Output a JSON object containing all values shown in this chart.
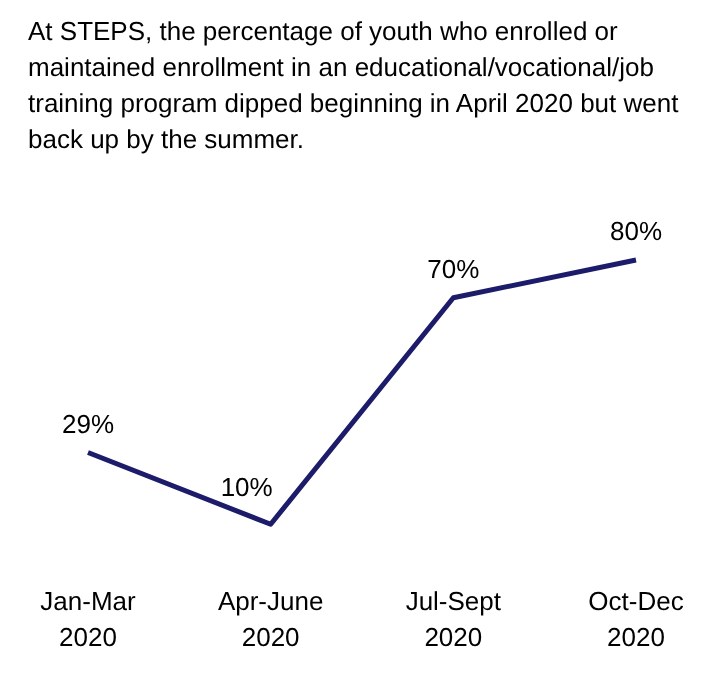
{
  "chart_data": {
    "type": "line",
    "title": "At STEPS, the percentage of youth who enrolled or maintained enrollment in an educational/vocational/job training program dipped beginning in April 2020 but went back up by the summer.",
    "categories": [
      "Jan-Mar 2020",
      "Apr-June 2020",
      "Jul-Sept 2020",
      "Oct-Dec 2020"
    ],
    "series": [
      {
        "color": "#1c1c6b",
        "values": [
          29,
          10,
          70,
          80
        ],
        "value_labels": [
          "29%",
          "10%",
          "70%",
          "80%"
        ]
      }
    ],
    "marker": "none"
  }
}
